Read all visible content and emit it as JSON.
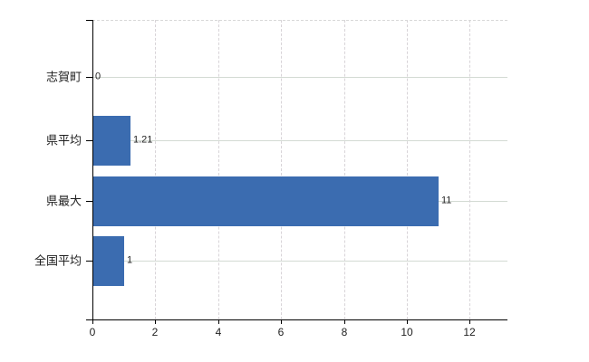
{
  "chart_data": {
    "type": "bar",
    "orientation": "horizontal",
    "title": "",
    "xlabel": "",
    "ylabel": "",
    "categories": [
      "志賀町",
      "県平均",
      "県最大",
      "全国平均"
    ],
    "values": [
      0,
      1.21,
      11,
      1
    ],
    "value_labels": [
      "0",
      "1.21",
      "11",
      "1"
    ],
    "x_ticks": [
      0,
      2,
      4,
      6,
      8,
      10,
      12
    ],
    "x_tick_labels": [
      "0",
      "2",
      "4",
      "6",
      "8",
      "10",
      "12"
    ],
    "xlim": [
      0,
      13.2
    ],
    "grid": true,
    "legend": false,
    "colors": {
      "bar_fill": "#3b6cb0",
      "axis": "#000000",
      "grid_horizontal": "#d3dad3",
      "grid_vertical": "#d8d4d8",
      "top_boundary": "#d8d8d8",
      "text": "#1f1f1f",
      "background": "#ffffff"
    }
  }
}
